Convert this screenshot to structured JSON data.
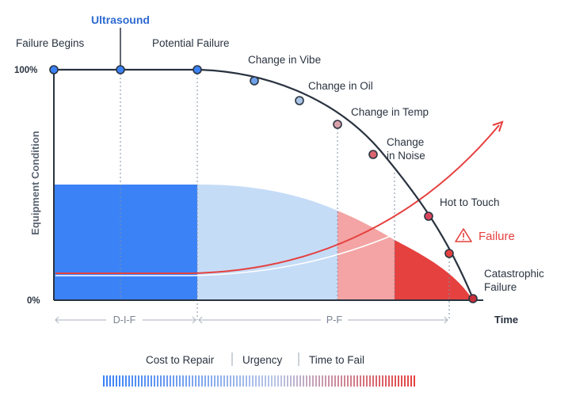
{
  "top_label": "Ultrasound",
  "y_axis": {
    "label": "Equipment Condition",
    "top_tick": "100%",
    "bottom_tick": "0%"
  },
  "x_axis": {
    "label": "Time"
  },
  "points": [
    {
      "label": "Failure Begins",
      "color": "#3b82f6"
    },
    {
      "label": "",
      "color": "#3b82f6"
    },
    {
      "label": "Potential Failure",
      "color": "#3b82f6"
    },
    {
      "label": "Change in Vibe",
      "color": "#6fa0e8"
    },
    {
      "label": "Change in Oil",
      "color": "#a9c4e6"
    },
    {
      "label": "Change in Temp",
      "color": "#d9a0aa"
    },
    {
      "label": "Change\nin Noise",
      "color": "#d9636f"
    },
    {
      "label": "Hot to Touch",
      "color": "#d9465a"
    },
    {
      "label": "Failure",
      "color": "#e5413f"
    },
    {
      "label": "Catastrophic\nFailure",
      "color": "#c62f3a"
    }
  ],
  "segments": {
    "dif": "D-I-F",
    "pf": "P-F"
  },
  "legend": {
    "items": [
      "Cost to Repair",
      "Urgency",
      "Time to Fail"
    ]
  },
  "colors": {
    "blue_dark": "#3b82f6",
    "blue_light": "#c5dcf7",
    "pink": "#f4a4a4",
    "red": "#e5413f",
    "navy": "#2a3340",
    "arrow_red": "#e5413f",
    "guide": "#b8c8dc"
  }
}
